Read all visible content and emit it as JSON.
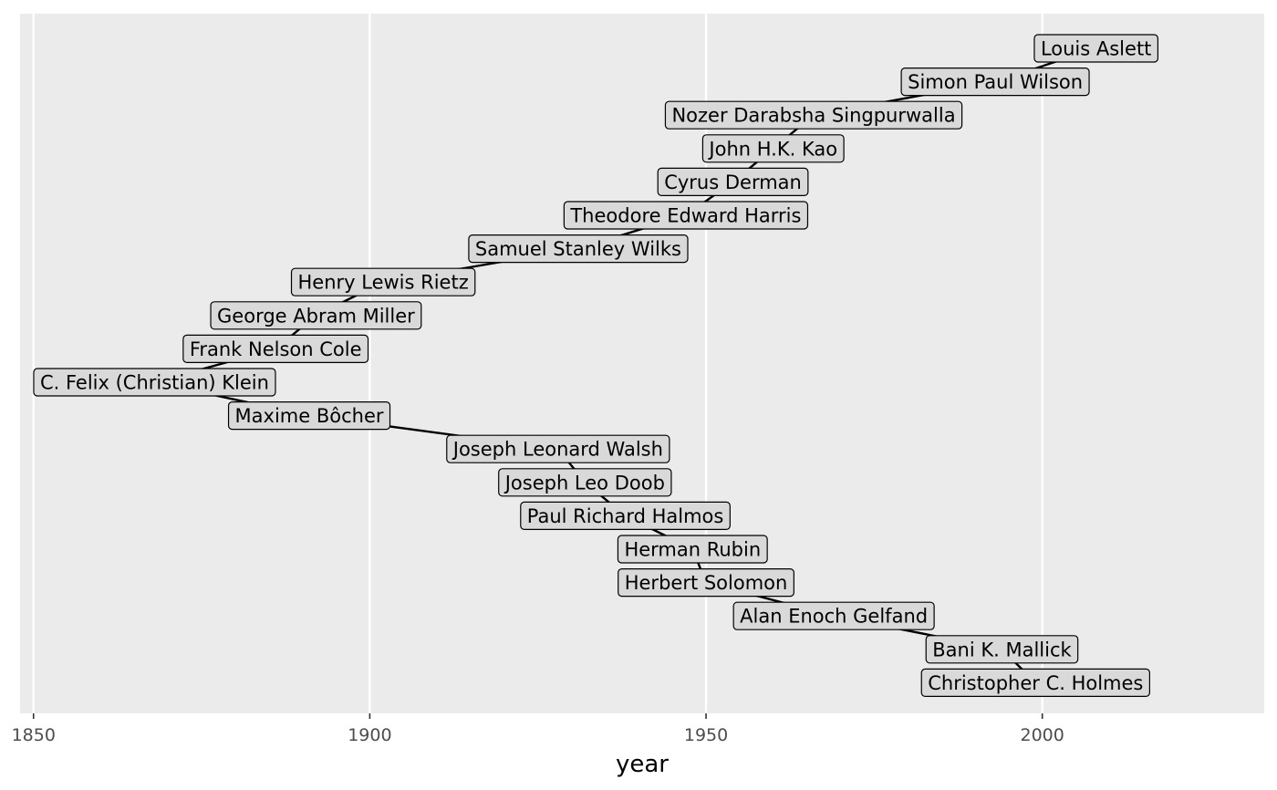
{
  "chart_data": {
    "type": "line",
    "title": "",
    "xlabel": "year",
    "ylabel": "",
    "xlim": [
      1848,
      2033
    ],
    "xticks": [
      1850,
      1900,
      1950,
      2000
    ],
    "grid": true,
    "legend": "none",
    "colors": {
      "panel": "#ebebeb",
      "gridline": "#ffffff",
      "line": "#000000",
      "label_fill": "#d9d9d9",
      "label_border": "#000000",
      "tick_text": "#4d4d4d"
    },
    "nodes": [
      {
        "name": "Louis Aslett",
        "year": 2008
      },
      {
        "name": "Simon Paul Wilson",
        "year": 1993
      },
      {
        "name": "Nozer Darabsha Singpurwalla",
        "year": 1966
      },
      {
        "name": "John H.K. Kao",
        "year": 1960
      },
      {
        "name": "Cyrus Derman",
        "year": 1954
      },
      {
        "name": "Theodore Edward Harris",
        "year": 1947
      },
      {
        "name": "Samuel Stanley Wilks",
        "year": 1931
      },
      {
        "name": "Henry Lewis Rietz",
        "year": 1902
      },
      {
        "name": "George Abram Miller",
        "year": 1892
      },
      {
        "name": "Frank Nelson Cole",
        "year": 1886
      },
      {
        "name": "C. Felix (Christian) Klein",
        "year": 1868
      },
      {
        "name": "Maxime Bôcher",
        "year": 1891
      },
      {
        "name": "Joseph Leonard Walsh",
        "year": 1928
      },
      {
        "name": "Joseph Leo Doob",
        "year": 1932
      },
      {
        "name": "Paul Richard Halmos",
        "year": 1938
      },
      {
        "name": "Herman Rubin",
        "year": 1948
      },
      {
        "name": "Herbert Solomon",
        "year": 1950
      },
      {
        "name": "Alan Enoch Gelfand",
        "year": 1969
      },
      {
        "name": "Bani K. Mallick",
        "year": 1994
      },
      {
        "name": "Christopher C. Holmes",
        "year": 1999
      }
    ]
  }
}
